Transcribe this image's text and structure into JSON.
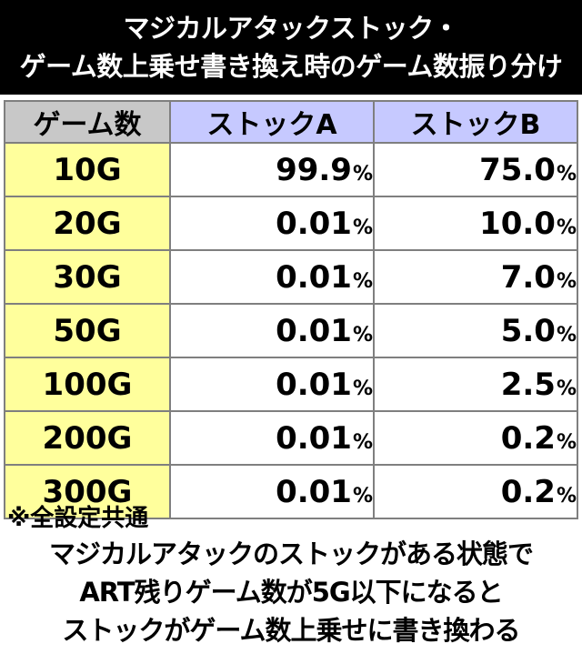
{
  "header": {
    "title_line1": "マジカルアタックストック・",
    "title_line2": "ゲーム数上乗せ書き換え時のゲーム数振り分け"
  },
  "table": {
    "headers": [
      "ゲーム数",
      "ストックA",
      "ストックB"
    ],
    "unit": "%",
    "rows": [
      {
        "games": "10G",
        "stock_a": "99.9",
        "stock_b": "75.0"
      },
      {
        "games": "20G",
        "stock_a": "0.01",
        "stock_b": "10.0"
      },
      {
        "games": "30G",
        "stock_a": "0.01",
        "stock_b": "7.0"
      },
      {
        "games": "50G",
        "stock_a": "0.01",
        "stock_b": "5.0"
      },
      {
        "games": "100G",
        "stock_a": "0.01",
        "stock_b": "2.5"
      },
      {
        "games": "200G",
        "stock_a": "0.01",
        "stock_b": "0.2"
      },
      {
        "games": "300G",
        "stock_a": "0.01",
        "stock_b": "0.2"
      }
    ]
  },
  "notes": {
    "heading": "※全設定共通",
    "lines": [
      "マジカルアタックのストックがある状態で",
      "ART残りゲーム数が5G以下になると",
      "ストックがゲーム数上乗せに書き換わる"
    ]
  },
  "colors": {
    "header_bg": "#000000",
    "games_col_bg": "#ffff9c",
    "games_header_bg": "#c8c8c8",
    "stock_header_bg": "#c6c9ff"
  }
}
